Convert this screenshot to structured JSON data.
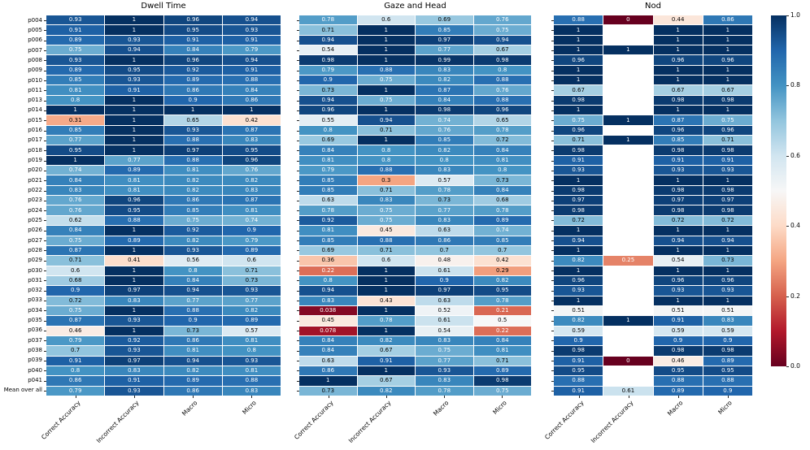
{
  "chart_data": {
    "type": "heatmap",
    "rows": [
      "p004",
      "p005",
      "p006",
      "p007",
      "p008",
      "p009",
      "p010",
      "p011",
      "p013",
      "p014",
      "p015",
      "p016",
      "p017",
      "p018",
      "p019",
      "p020",
      "p021",
      "p022",
      "p023",
      "p024",
      "p025",
      "p026",
      "p027",
      "p028",
      "p029",
      "p030",
      "p031",
      "p032",
      "p033",
      "p034",
      "p035",
      "p036",
      "p037",
      "p038",
      "p039",
      "p040",
      "p041",
      "Mean over all"
    ],
    "columns": [
      "Correct Accuracy",
      "Incorrect Accuracy",
      "Macro",
      "Micro"
    ],
    "panels": [
      {
        "title": "Dwell Time",
        "values": [
          [
            "0.93",
            "1",
            "0.96",
            "0.94"
          ],
          [
            "0.91",
            "1",
            "0.95",
            "0.93"
          ],
          [
            "0.89",
            "0.93",
            "0.91",
            "0.91"
          ],
          [
            "0.75",
            "0.94",
            "0.84",
            "0.79"
          ],
          [
            "0.93",
            "1",
            "0.96",
            "0.94"
          ],
          [
            "0.89",
            "0.95",
            "0.92",
            "0.91"
          ],
          [
            "0.85",
            "0.93",
            "0.89",
            "0.88"
          ],
          [
            "0.81",
            "0.91",
            "0.86",
            "0.84"
          ],
          [
            "0.8",
            "1",
            "0.9",
            "0.86"
          ],
          [
            "1",
            "1",
            "1",
            "1"
          ],
          [
            "0.31",
            "1",
            "0.65",
            "0.42"
          ],
          [
            "0.85",
            "1",
            "0.93",
            "0.87"
          ],
          [
            "0.77",
            "1",
            "0.88",
            "0.83"
          ],
          [
            "0.95",
            "1",
            "0.97",
            "0.95"
          ],
          [
            "1",
            "0.77",
            "0.88",
            "0.96"
          ],
          [
            "0.74",
            "0.89",
            "0.81",
            "0.76"
          ],
          [
            "0.84",
            "0.81",
            "0.82",
            "0.82"
          ],
          [
            "0.83",
            "0.81",
            "0.82",
            "0.83"
          ],
          [
            "0.76",
            "0.96",
            "0.86",
            "0.87"
          ],
          [
            "0.76",
            "0.95",
            "0.85",
            "0.81"
          ],
          [
            "0.62",
            "0.88",
            "0.75",
            "0.74"
          ],
          [
            "0.84",
            "1",
            "0.92",
            "0.9"
          ],
          [
            "0.75",
            "0.89",
            "0.82",
            "0.79"
          ],
          [
            "0.87",
            "1",
            "0.93",
            "0.89"
          ],
          [
            "0.71",
            "0.41",
            "0.56",
            "0.6"
          ],
          [
            "0.6",
            "1",
            "0.8",
            "0.71"
          ],
          [
            "0.68",
            "1",
            "0.84",
            "0.73"
          ],
          [
            "0.9",
            "0.97",
            "0.94",
            "0.93"
          ],
          [
            "0.72",
            "0.83",
            "0.77",
            "0.77"
          ],
          [
            "0.75",
            "1",
            "0.88",
            "0.82"
          ],
          [
            "0.87",
            "0.93",
            "0.9",
            "0.89"
          ],
          [
            "0.46",
            "1",
            "0.73",
            "0.57"
          ],
          [
            "0.79",
            "0.92",
            "0.86",
            "0.81"
          ],
          [
            "0.7",
            "0.93",
            "0.81",
            "0.8"
          ],
          [
            "0.91",
            "0.97",
            "0.94",
            "0.93"
          ],
          [
            "0.8",
            "0.83",
            "0.82",
            "0.81"
          ],
          [
            "0.86",
            "0.91",
            "0.89",
            "0.88"
          ],
          [
            "0.79",
            "0.93",
            "0.86",
            "0.83"
          ]
        ]
      },
      {
        "title": "Gaze and Head",
        "values": [
          [
            "0.78",
            "0.6",
            "0.69",
            "0.76"
          ],
          [
            "0.71",
            "1",
            "0.85",
            "0.75"
          ],
          [
            "0.94",
            "1",
            "0.97",
            "0.94"
          ],
          [
            "0.54",
            "1",
            "0.77",
            "0.67"
          ],
          [
            "0.98",
            "1",
            "0.99",
            "0.98"
          ],
          [
            "0.79",
            "0.88",
            "0.83",
            "0.8"
          ],
          [
            "0.9",
            "0.75",
            "0.82",
            "0.88"
          ],
          [
            "0.73",
            "1",
            "0.87",
            "0.76"
          ],
          [
            "0.94",
            "0.75",
            "0.84",
            "0.88"
          ],
          [
            "0.96",
            "1",
            "0.98",
            "0.96"
          ],
          [
            "0.55",
            "0.94",
            "0.74",
            "0.65"
          ],
          [
            "0.8",
            "0.71",
            "0.76",
            "0.78"
          ],
          [
            "0.69",
            "1",
            "0.85",
            "0.72"
          ],
          [
            "0.84",
            "0.8",
            "0.82",
            "0.84"
          ],
          [
            "0.81",
            "0.8",
            "0.8",
            "0.81"
          ],
          [
            "0.79",
            "0.88",
            "0.83",
            "0.8"
          ],
          [
            "0.85",
            "0.3",
            "0.57",
            "0.73"
          ],
          [
            "0.85",
            "0.71",
            "0.78",
            "0.84"
          ],
          [
            "0.63",
            "0.83",
            "0.73",
            "0.68"
          ],
          [
            "0.78",
            "0.75",
            "0.77",
            "0.78"
          ],
          [
            "0.92",
            "0.75",
            "0.83",
            "0.89"
          ],
          [
            "0.81",
            "0.45",
            "0.63",
            "0.74"
          ],
          [
            "0.85",
            "0.88",
            "0.86",
            "0.85"
          ],
          [
            "0.69",
            "0.71",
            "0.7",
            "0.7"
          ],
          [
            "0.36",
            "0.6",
            "0.48",
            "0.42"
          ],
          [
            "0.22",
            "1",
            "0.61",
            "0.29"
          ],
          [
            "0.8",
            "1",
            "0.9",
            "0.82"
          ],
          [
            "0.94",
            "1",
            "0.97",
            "0.95"
          ],
          [
            "0.83",
            "0.43",
            "0.63",
            "0.78"
          ],
          [
            "0.038",
            "1",
            "0.52",
            "0.21"
          ],
          [
            "0.45",
            "0.78",
            "0.61",
            "0.5"
          ],
          [
            "0.078",
            "1",
            "0.54",
            "0.22"
          ],
          [
            "0.84",
            "0.82",
            "0.83",
            "0.84"
          ],
          [
            "0.84",
            "0.67",
            "0.75",
            "0.81"
          ],
          [
            "0.63",
            "0.91",
            "0.77",
            "0.71"
          ],
          [
            "0.86",
            "1",
            "0.93",
            "0.89"
          ],
          [
            "1",
            "0.67",
            "0.83",
            "0.98"
          ],
          [
            "0.73",
            "0.82",
            "0.78",
            "0.75"
          ]
        ]
      },
      {
        "title": "Nod",
        "values": [
          [
            "0.88",
            "0",
            "0.44",
            "0.86"
          ],
          [
            "1",
            null,
            "1",
            "1"
          ],
          [
            "1",
            null,
            "1",
            "1"
          ],
          [
            "1",
            "1",
            "1",
            "1"
          ],
          [
            "0.96",
            null,
            "0.96",
            "0.96"
          ],
          [
            "1",
            null,
            "1",
            "1"
          ],
          [
            "1",
            null,
            "1",
            "1"
          ],
          [
            "0.67",
            null,
            "0.67",
            "0.67"
          ],
          [
            "0.98",
            null,
            "0.98",
            "0.98"
          ],
          [
            "1",
            null,
            "1",
            "1"
          ],
          [
            "0.75",
            "1",
            "0.87",
            "0.75"
          ],
          [
            "0.96",
            null,
            "0.96",
            "0.96"
          ],
          [
            "0.71",
            "1",
            "0.85",
            "0.71"
          ],
          [
            "0.98",
            null,
            "0.98",
            "0.98"
          ],
          [
            "0.91",
            null,
            "0.91",
            "0.91"
          ],
          [
            "0.93",
            null,
            "0.93",
            "0.93"
          ],
          [
            "1",
            null,
            "1",
            "1"
          ],
          [
            "0.98",
            null,
            "0.98",
            "0.98"
          ],
          [
            "0.97",
            null,
            "0.97",
            "0.97"
          ],
          [
            "0.98",
            null,
            "0.98",
            "0.98"
          ],
          [
            "0.72",
            null,
            "0.72",
            "0.72"
          ],
          [
            "1",
            null,
            "1",
            "1"
          ],
          [
            "0.94",
            null,
            "0.94",
            "0.94"
          ],
          [
            "1",
            null,
            "1",
            "1"
          ],
          [
            "0.82",
            "0.25",
            "0.54",
            "0.73"
          ],
          [
            "1",
            null,
            "1",
            "1"
          ],
          [
            "0.96",
            null,
            "0.96",
            "0.96"
          ],
          [
            "0.93",
            null,
            "0.93",
            "0.93"
          ],
          [
            "1",
            null,
            "1",
            "1"
          ],
          [
            "0.51",
            null,
            "0.51",
            "0.51"
          ],
          [
            "0.82",
            "1",
            "0.91",
            "0.83"
          ],
          [
            "0.59",
            null,
            "0.59",
            "0.59"
          ],
          [
            "0.9",
            null,
            "0.9",
            "0.9"
          ],
          [
            "0.98",
            null,
            "0.98",
            "0.98"
          ],
          [
            "0.91",
            "0",
            "0.46",
            "0.89"
          ],
          [
            "0.95",
            null,
            "0.95",
            "0.95"
          ],
          [
            "0.88",
            null,
            "0.88",
            "0.88"
          ],
          [
            "0.91",
            "0.61",
            "0.89",
            "0.9"
          ]
        ]
      }
    ],
    "vmin": 0,
    "vmax": 1,
    "colormap": {
      "name": "RdBu",
      "stops": [
        "#67001f",
        "#b2182b",
        "#d6604d",
        "#f4a582",
        "#fddbc7",
        "#f7f7f7",
        "#d1e5f0",
        "#92c5de",
        "#4393c3",
        "#2166ac",
        "#053061"
      ],
      "nan_color": "#ffffff"
    },
    "colorbar_ticks": [
      "1.0",
      "0.8",
      "0.6",
      "0.4",
      "0.2",
      "0.0"
    ],
    "annotations_shown": true,
    "grid_line_color": "#ffffff"
  }
}
